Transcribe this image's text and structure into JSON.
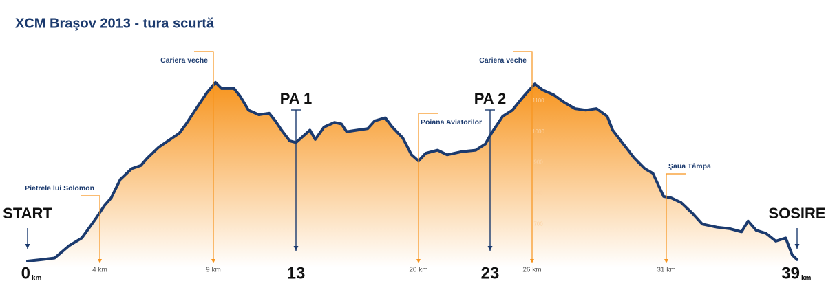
{
  "chart_data": {
    "type": "area",
    "title": "XCM Braşov 2013 - tura scurtă",
    "x": [
      0,
      0.8,
      1.5,
      2.3,
      3.0,
      3.8,
      4.2,
      4.5,
      4.9,
      5.4,
      5.8,
      6.1,
      6.6,
      7.0,
      7.5,
      7.8,
      8.2,
      8.7,
      9.1,
      9.4,
      10.0,
      10.3,
      10.7,
      11.2,
      11.7,
      12.0,
      12.3,
      12.7,
      13.0,
      13.4,
      13.8,
      14.1,
      14.6,
      15.2,
      15.6,
      15.9,
      16.5,
      17.1,
      17.5,
      18.1,
      18.5,
      19.1,
      19.6,
      20.0,
      20.3,
      20.8,
      21.2,
      21.8,
      22.4,
      22.8,
      23.1,
      23.9,
      24.6,
      25.4,
      26.1,
      26.4,
      26.8,
      27.2,
      27.6,
      28.0,
      28.4,
      28.8,
      29.0,
      29.4,
      29.8,
      30.2,
      30.5,
      30.9,
      31.3,
      31.9,
      32.6,
      33.2,
      34.1,
      34.9,
      35.6,
      36.0,
      36.5,
      37.1,
      37.7,
      38.3,
      38.7,
      39.0
    ],
    "values": [
      580,
      585,
      590,
      630,
      655,
      720,
      760,
      785,
      845,
      880,
      890,
      915,
      950,
      970,
      995,
      1025,
      1070,
      1125,
      1160,
      1140,
      1140,
      1115,
      1070,
      1055,
      1060,
      1035,
      1005,
      970,
      965,
      985,
      1005,
      975,
      1015,
      1030,
      1025,
      1000,
      1005,
      1010,
      1035,
      1045,
      1015,
      980,
      925,
      905,
      930,
      940,
      925,
      935,
      940,
      960,
      995,
      1050,
      1070,
      1115,
      1155,
      1135,
      1120,
      1095,
      1075,
      1070,
      1075,
      1050,
      1005,
      960,
      915,
      880,
      865,
      790,
      785,
      770,
      735,
      700,
      690,
      685,
      675,
      710,
      680,
      670,
      645,
      655,
      600,
      585
    ],
    "color": "#1b3a6e",
    "fill": "#f7941d",
    "xlim": [
      0,
      39
    ],
    "xticks": [
      0,
      {
        "value": 4,
        "label": "4 km"
      },
      {
        "value": 9,
        "label": "9 km"
      },
      13,
      {
        "value": 20,
        "label": "20 km"
      },
      23,
      {
        "value": 26,
        "label": "26 km"
      },
      {
        "value": 31,
        "label": "31 km"
      },
      39
    ],
    "x_unit": "km",
    "ylim": [
      560,
      1200
    ],
    "yticks": [
      700,
      800,
      900,
      1000,
      1100
    ],
    "annotations": [
      {
        "x": 0,
        "text": "START",
        "color": "#1b3a6e"
      },
      {
        "x": 4,
        "text": "Pietrele lui  Solomon",
        "color": "#f7941d"
      },
      {
        "x": 9,
        "text": "Cariera veche",
        "color": "#f7941d"
      },
      {
        "x": 13,
        "text": "PA 1",
        "color": "#1b3a6e"
      },
      {
        "x": 20,
        "text": "Poiana Aviatorilor",
        "color": "#f7941d"
      },
      {
        "x": 23,
        "text": "PA 2",
        "color": "#1b3a6e"
      },
      {
        "x": 26,
        "text": "Cariera veche",
        "color": "#f7941d"
      },
      {
        "x": 31,
        "text": "Şaua Tâmpa",
        "color": "#f7941d"
      },
      {
        "x": 39,
        "text": "SOSIRE",
        "color": "#1b3a6e"
      }
    ]
  }
}
